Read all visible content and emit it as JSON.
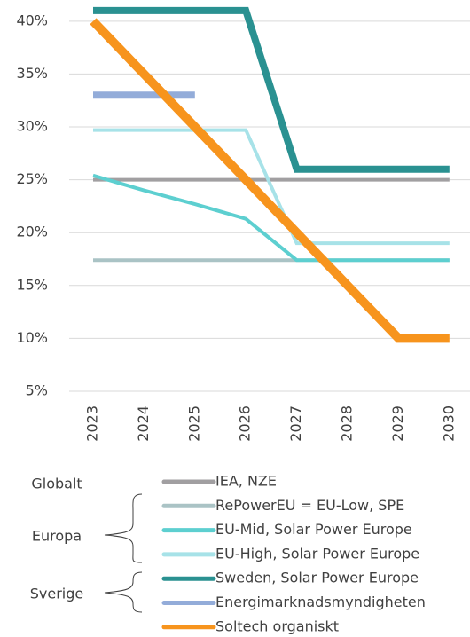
{
  "chart_data": {
    "type": "line",
    "categories": [
      "2023",
      "2024",
      "2025",
      "2026",
      "2027",
      "2028",
      "2029",
      "2030"
    ],
    "ylim": [
      5,
      42
    ],
    "yticks": [
      {
        "value": 5,
        "label": "5%"
      },
      {
        "value": 10,
        "label": "10%"
      },
      {
        "value": 15,
        "label": "15%"
      },
      {
        "value": 20,
        "label": "20%"
      },
      {
        "value": 25,
        "label": "25%"
      },
      {
        "value": 30,
        "label": "30%"
      },
      {
        "value": 35,
        "label": "35%"
      },
      {
        "value": 40,
        "label": "40%"
      }
    ],
    "grid": true,
    "series": [
      {
        "name": "IEA, NZE",
        "color": "#a19fa1",
        "line_width": 4,
        "values": [
          25,
          25,
          25,
          25,
          25,
          25,
          25,
          25
        ]
      },
      {
        "name": "RePowerEU = EU-Low, SPE",
        "color": "#aac3c5",
        "line_width": 4,
        "values": [
          17.4,
          17.4,
          17.4,
          17.4,
          17.4,
          17.4,
          17.4,
          17.4
        ]
      },
      {
        "name": "EU-Mid, Solar Power Europe",
        "color": "#5dcfd0",
        "line_width": 4,
        "values": [
          25.4,
          24.0,
          22.7,
          21.3,
          17.4,
          17.4,
          17.4,
          17.4
        ]
      },
      {
        "name": "EU-High, Solar Power Europe",
        "color": "#a7e2e8",
        "line_width": 4,
        "values": [
          29.7,
          29.7,
          29.7,
          29.7,
          19,
          19,
          19,
          19
        ]
      },
      {
        "name": "Sweden, Solar Power Europe",
        "color": "#2a9191",
        "line_width": 8,
        "values": [
          41,
          41,
          41,
          41,
          26,
          26,
          26,
          26
        ]
      },
      {
        "name": "Energimarknadsmyndigheten",
        "color": "#93acd9",
        "line_width": 8,
        "values": [
          33,
          33,
          33,
          null,
          null,
          null,
          null,
          null
        ]
      },
      {
        "name": "Soltech organiskt",
        "color": "#f7941d",
        "line_width": 10,
        "values": [
          40,
          35,
          30,
          25,
          20,
          15,
          10,
          10
        ]
      }
    ],
    "legend_groups": [
      "Globalt",
      "Europa",
      "Sverige"
    ]
  }
}
